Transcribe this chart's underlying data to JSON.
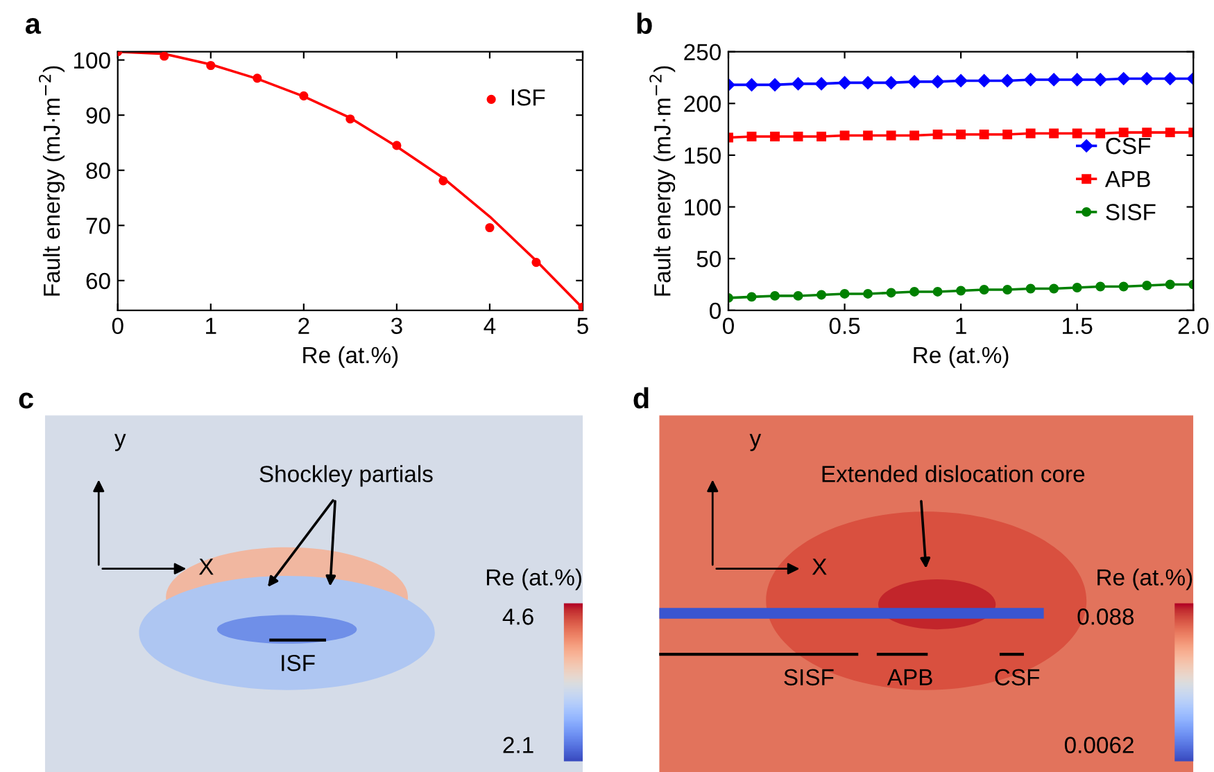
{
  "chart_data": [
    {
      "type": "scatter",
      "title": "a",
      "xlabel": "Re (at.%)",
      "ylabel": "Fault energy (mJ·m$^{−2}$)",
      "xlim": [
        0,
        5
      ],
      "ylim": [
        54.6,
        101.5
      ],
      "xticks": [
        0,
        1,
        2,
        3,
        4,
        5
      ],
      "yticks": [
        60,
        70,
        80,
        90,
        100
      ],
      "grid": false,
      "legend": "top right",
      "series": [
        {
          "name": "ISF",
          "type": "scatter",
          "color": "#ff0000",
          "marker": "circle",
          "x": [
            0,
            0.5,
            1,
            1.5,
            2,
            2.5,
            3,
            3.5,
            4,
            4.5,
            5
          ],
          "values": [
            101.5,
            100.7,
            99.0,
            96.7,
            93.5,
            89.3,
            84.5,
            78.1,
            69.6,
            63.3,
            55.2
          ]
        },
        {
          "type": "line",
          "color": "#ff0000",
          "marker": "none",
          "x": [
            0,
            0.5,
            1,
            1.5,
            2,
            2.5,
            3,
            3.5,
            4,
            4.5,
            5
          ],
          "values": [
            101.5,
            101.1,
            99.2,
            96.6,
            93.4,
            89.5,
            84.3,
            78.6,
            71.6,
            63.6,
            55.0
          ]
        }
      ]
    },
    {
      "type": "line",
      "title": "b",
      "xlabel": "Re (at.%)",
      "ylabel": "Fault energy (mJ·m$^{−2}$)",
      "xlim": [
        0,
        2
      ],
      "ylim": [
        0,
        250
      ],
      "xticks": [
        0,
        0.5,
        1,
        1.5,
        {
          "value": 2,
          "label": "2.0"
        }
      ],
      "yticks": [
        0,
        50,
        100,
        150,
        200,
        250
      ],
      "grid": false,
      "legend": "right",
      "x": [
        0,
        0.1,
        0.2,
        0.3,
        0.4,
        0.5,
        0.6,
        0.7,
        0.8,
        0.9,
        1.0,
        1.1,
        1.2,
        1.3,
        1.4,
        1.5,
        1.6,
        1.7,
        1.8,
        1.9,
        2.0
      ],
      "series": [
        {
          "name": "CSF",
          "color": "#0000ff",
          "marker": "diamond",
          "values": [
            218,
            218,
            218,
            219,
            219,
            220,
            220,
            220,
            221,
            221,
            222,
            222,
            222,
            223,
            223,
            223,
            223,
            224,
            224,
            224,
            224
          ]
        },
        {
          "name": "APB",
          "color": "#ff0000",
          "marker": "square",
          "values": [
            167,
            168,
            168,
            168,
            168,
            169,
            169,
            169,
            169,
            170,
            170,
            170,
            170,
            171,
            171,
            171,
            171,
            172,
            172,
            172,
            172
          ]
        },
        {
          "name": "SISF",
          "color": "#008000",
          "marker": "circle",
          "values": [
            12,
            13,
            14,
            14,
            15,
            16,
            16,
            17,
            18,
            18,
            19,
            20,
            20,
            21,
            21,
            22,
            23,
            23,
            24,
            25,
            25
          ]
        }
      ]
    },
    {
      "type": "other",
      "title": "c",
      "clabel": "Re (at.%)",
      "annotations": [
        "y",
        "X",
        "Shockley partials",
        "ISF",
        "4.6",
        "2.1"
      ]
    },
    {
      "type": "other",
      "title": "d",
      "clabel": "Re (at.%)",
      "annotations": [
        "y",
        "X",
        "Extended dislocation core",
        "SISF",
        "APB",
        "CSF",
        "0.088",
        "0.0062"
      ]
    }
  ]
}
